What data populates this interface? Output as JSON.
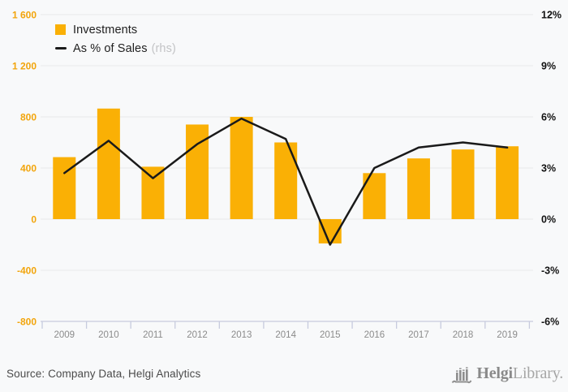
{
  "chart_data": {
    "type": "bar",
    "categories": [
      "2009",
      "2010",
      "2011",
      "2012",
      "2013",
      "2014",
      "2015",
      "2016",
      "2017",
      "2018",
      "2019"
    ],
    "series": [
      {
        "name": "Investments",
        "type": "bar",
        "axis": "left",
        "color": "#FAB005",
        "values": [
          485,
          865,
          410,
          740,
          800,
          600,
          -190,
          360,
          475,
          545,
          570
        ]
      },
      {
        "name": "As % of Sales",
        "suffix": "(rhs)",
        "type": "line",
        "axis": "right",
        "color": "#1a1a1a",
        "values": [
          2.7,
          4.6,
          2.4,
          4.4,
          5.9,
          4.7,
          -1.5,
          3.0,
          4.2,
          4.5,
          4.2
        ]
      }
    ],
    "title": "",
    "xlabel": "",
    "ylabel": "",
    "left_axis": {
      "min": -800,
      "max": 1600,
      "step": 400,
      "ticks": [
        "1 600",
        "1 200",
        "800",
        "400",
        "0",
        "-400",
        "-800"
      ],
      "label_color": "#f2a50c"
    },
    "right_axis": {
      "min": -6,
      "max": 12,
      "step": 3,
      "ticks": [
        "12%",
        "9%",
        "6%",
        "3%",
        "0%",
        "-3%",
        "-6%"
      ],
      "label_color": "#111111"
    },
    "grid": true,
    "legend_position": "top-left",
    "x_label_color": "#8b8b8b",
    "grid_color": "#e8e9ea",
    "axis_line_color": "#c7cbde"
  },
  "footer": {
    "source": "Source: Company Data, Helgi Analytics",
    "logo": {
      "name_bold": "Helgi",
      "name_light": "Library."
    }
  }
}
